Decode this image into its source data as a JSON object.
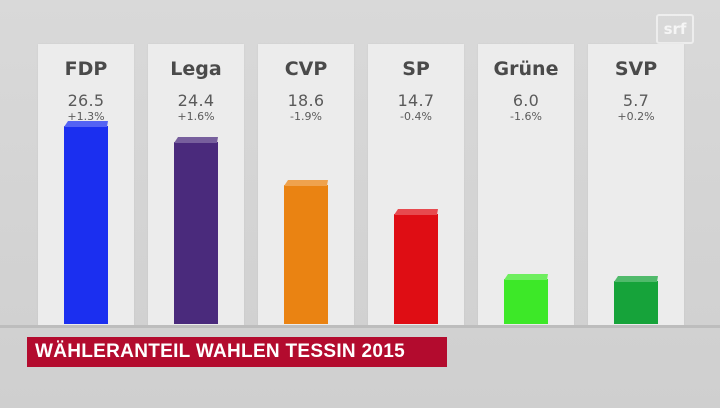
{
  "chart_data": {
    "type": "bar",
    "title": "WÄHLERANTEIL WAHLEN TESSIN 2015",
    "categories": [
      "FDP",
      "Lega",
      "CVP",
      "SP",
      "Grüne",
      "SVP"
    ],
    "values": [
      26.5,
      24.4,
      18.6,
      14.7,
      6.0,
      5.7
    ],
    "value_labels": [
      "26.5",
      "24.4",
      "18.6",
      "14.7",
      "6.0",
      "5.7"
    ],
    "changes": [
      "+1.3%",
      "+1.6%",
      "-1.9%",
      "-0.4%",
      "-1.6%",
      "+0.2%"
    ],
    "colors": [
      "#1b2ff0",
      "#4a2a7c",
      "#ea8312",
      "#df0d14",
      "#3de828",
      "#16a33a"
    ],
    "ylim": [
      0,
      30
    ],
    "grid": false
  },
  "branding": {
    "logo_icon": "broadcaster-logo-icon"
  }
}
